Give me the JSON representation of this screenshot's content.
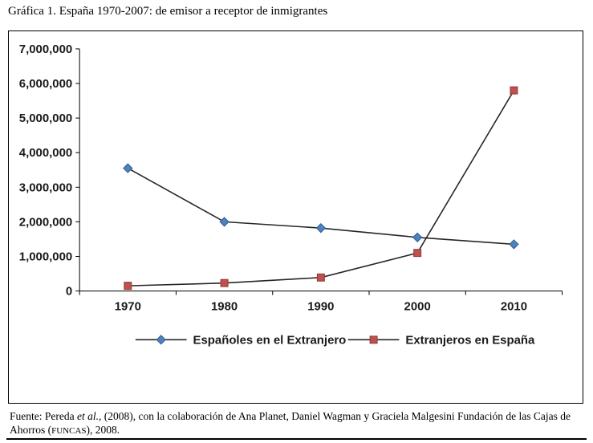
{
  "figure": {
    "title": "Gráfica 1. España 1970-2007: de emisor a receptor de inmigrantes"
  },
  "chart_data": {
    "type": "line",
    "title": "",
    "xlabel": "",
    "ylabel": "",
    "categories": [
      "1970",
      "1980",
      "1990",
      "2000",
      "2010"
    ],
    "series": [
      {
        "name": "Españoles en el Extranjero",
        "values": [
          3550000,
          2000000,
          1820000,
          1550000,
          1350000
        ],
        "marker": "diamond",
        "color": "#4F81BD",
        "marker_edge": "#2F5C94",
        "line_color": "#262626"
      },
      {
        "name": "Extranjeros en España",
        "values": [
          150000,
          230000,
          390000,
          1100000,
          5800000
        ],
        "marker": "square",
        "color": "#C0504D",
        "marker_edge": "#8E3A38",
        "line_color": "#262626"
      }
    ],
    "ylim": [
      0,
      7000000
    ],
    "ytick_step": 1000000,
    "grid": false,
    "legend_position": "bottom"
  },
  "source": {
    "prefix": "Fuente: Pereda ",
    "etal": "et al.",
    "middle": ", (2008), con la colaboración de Ana Planet, Daniel Wagman y Graciela Malgesini Fundación de las Cajas de Ahorros (",
    "funcas": "FUNCAS",
    "suffix": "), 2008."
  }
}
